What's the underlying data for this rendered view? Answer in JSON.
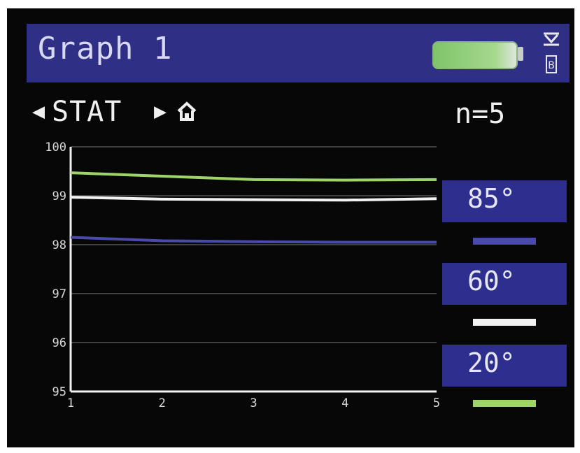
{
  "header": {
    "title": "Graph 1",
    "battery_icon": "battery-icon",
    "usb_icon": "usb-icon",
    "battery_color": "#7fc46a"
  },
  "nav": {
    "prev_icon": "◀",
    "label": "STAT",
    "next_icon": "▶",
    "home_icon": "home-icon"
  },
  "count_label": "n=5",
  "chart_data": {
    "type": "line",
    "title": "",
    "xlabel": "",
    "ylabel": "",
    "x": [
      1,
      2,
      3,
      4,
      5
    ],
    "ylim": [
      95,
      100
    ],
    "y_ticks": [
      "100",
      "99",
      "98",
      "97",
      "96",
      "95"
    ],
    "x_ticks": [
      "1",
      "2",
      "3",
      "4",
      "5"
    ],
    "grid": true,
    "series": [
      {
        "name": "85°",
        "color": "#4a4aa8",
        "values": [
          98.15,
          98.08,
          98.06,
          98.05,
          98.05
        ]
      },
      {
        "name": "60°",
        "color": "#f2f2f2",
        "values": [
          98.97,
          98.93,
          98.92,
          98.91,
          98.94
        ]
      },
      {
        "name": "20°",
        "color": "#9ed46a",
        "values": [
          99.47,
          99.4,
          99.33,
          99.32,
          99.33
        ]
      }
    ]
  },
  "legend": [
    {
      "label": "85°",
      "color": "#4a4aa8"
    },
    {
      "label": "60°",
      "color": "#f2f2f2"
    },
    {
      "label": "20°",
      "color": "#9ed46a"
    }
  ]
}
